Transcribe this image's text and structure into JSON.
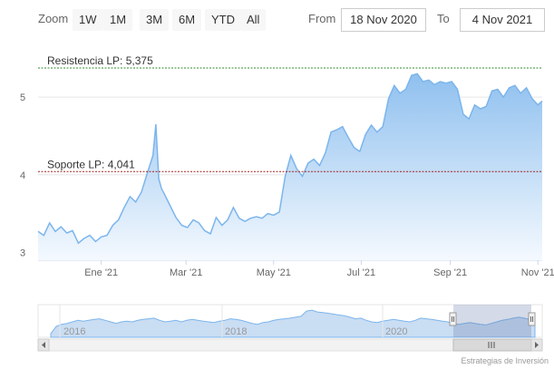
{
  "range_selector": {
    "zoom_label": "Zoom",
    "buttons": [
      "1W",
      "1M",
      "3M",
      "6M",
      "YTD",
      "All"
    ],
    "from_label": "From",
    "from_value": "18 Nov 2020",
    "to_label": "To",
    "to_value": "4 Nov 2021"
  },
  "chart_data": {
    "type": "area",
    "x_ticks": [
      "Ene '21",
      "Mar '21",
      "May '21",
      "Jul '21",
      "Sep '21",
      "Nov '21"
    ],
    "y_ticks": [
      "3",
      "4",
      "5"
    ],
    "ylim": [
      2.9,
      5.55
    ],
    "grid": true,
    "x": [
      "2020-11-18",
      "2020-11-22",
      "2020-11-26",
      "2020-11-30",
      "2020-12-04",
      "2020-12-08",
      "2020-12-12",
      "2020-12-16",
      "2020-12-20",
      "2020-12-24",
      "2020-12-28",
      "2021-01-01",
      "2021-01-05",
      "2021-01-09",
      "2021-01-13",
      "2021-01-17",
      "2021-01-21",
      "2021-01-25",
      "2021-01-29",
      "2021-02-02",
      "2021-02-06",
      "2021-02-08",
      "2021-02-10",
      "2021-02-12",
      "2021-02-14",
      "2021-02-18",
      "2021-02-22",
      "2021-02-26",
      "2021-03-02",
      "2021-03-06",
      "2021-03-10",
      "2021-03-14",
      "2021-03-18",
      "2021-03-22",
      "2021-03-26",
      "2021-03-30",
      "2021-04-03",
      "2021-04-07",
      "2021-04-11",
      "2021-04-15",
      "2021-04-19",
      "2021-04-23",
      "2021-04-27",
      "2021-05-01",
      "2021-05-05",
      "2021-05-09",
      "2021-05-13",
      "2021-05-17",
      "2021-05-21",
      "2021-05-25",
      "2021-05-29",
      "2021-06-02",
      "2021-06-06",
      "2021-06-10",
      "2021-06-14",
      "2021-06-18",
      "2021-06-22",
      "2021-06-26",
      "2021-06-30",
      "2021-07-04",
      "2021-07-08",
      "2021-07-12",
      "2021-07-16",
      "2021-07-20",
      "2021-07-24",
      "2021-07-28",
      "2021-08-01",
      "2021-08-05",
      "2021-08-09",
      "2021-08-13",
      "2021-08-17",
      "2021-08-21",
      "2021-08-25",
      "2021-08-29",
      "2021-09-02",
      "2021-09-06",
      "2021-09-10",
      "2021-09-14",
      "2021-09-18",
      "2021-09-22",
      "2021-09-26",
      "2021-09-30",
      "2021-10-04",
      "2021-10-08",
      "2021-10-12",
      "2021-10-16",
      "2021-10-20",
      "2021-10-24",
      "2021-10-28",
      "2021-11-01",
      "2021-11-04"
    ],
    "series": [
      {
        "values": [
          3.27,
          3.22,
          3.38,
          3.27,
          3.33,
          3.25,
          3.28,
          3.12,
          3.18,
          3.22,
          3.14,
          3.2,
          3.22,
          3.35,
          3.42,
          3.58,
          3.72,
          3.65,
          3.78,
          4.02,
          4.25,
          4.65,
          3.95,
          3.82,
          3.75,
          3.6,
          3.45,
          3.35,
          3.32,
          3.42,
          3.38,
          3.28,
          3.24,
          3.45,
          3.35,
          3.42,
          3.58,
          3.44,
          3.4,
          3.44,
          3.46,
          3.44,
          3.5,
          3.48,
          3.52,
          3.98,
          4.25,
          4.08,
          3.98,
          4.15,
          4.2,
          4.12,
          4.28,
          4.55,
          4.58,
          4.62,
          4.48,
          4.35,
          4.3,
          4.52,
          4.64,
          4.55,
          4.62,
          4.98,
          5.15,
          5.05,
          5.1,
          5.28,
          5.3,
          5.2,
          5.22,
          5.16,
          5.2,
          5.18,
          5.2,
          5.1,
          4.78,
          4.72,
          4.9,
          4.85,
          4.88,
          5.08,
          5.1,
          5.0,
          5.12,
          5.15,
          5.05,
          5.12,
          4.98,
          4.9,
          4.95
        ]
      }
    ],
    "plot_lines": [
      {
        "label": "Resistencia LP: 5,375",
        "value": 5.375,
        "color": "#2e8b2e"
      },
      {
        "label": "Soporte LP: 4,041",
        "value": 4.041,
        "color": "#a02020"
      }
    ],
    "line_color": "#7cb5ec",
    "fill_top": "#8fc0ef",
    "fill_bottom": "#f4f9fe"
  },
  "navigator": {
    "ticks": [
      "2016",
      "2018",
      "2020"
    ]
  },
  "credit": "Estrategias de Inversión"
}
